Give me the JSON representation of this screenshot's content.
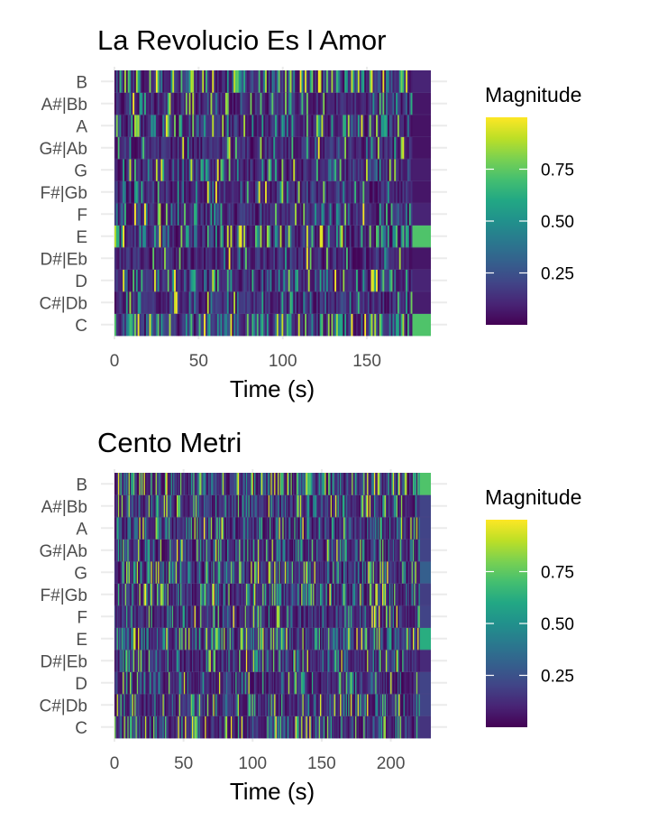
{
  "chart_data": [
    {
      "type": "heatmap",
      "title": "La Revolucio Es l Amor",
      "xlabel": "Time (s)",
      "ylabel": "",
      "xlim": [
        0,
        188
      ],
      "xticks": [
        0,
        50,
        100,
        150
      ],
      "categories": [
        "C",
        "C#|Db",
        "D",
        "D#|Eb",
        "E",
        "F",
        "F#|Gb",
        "G",
        "G#|Ab",
        "A",
        "A#|Bb",
        "B"
      ],
      "legend": {
        "title": "Magnitude",
        "ticks": [
          0.25,
          0.5,
          0.75
        ],
        "position": "right",
        "colormap": "viridis",
        "range": [
          0,
          1
        ]
      },
      "segments": 180,
      "seed": 7,
      "pitch_activity": {
        "C": 0.45,
        "C#|Db": 0.12,
        "D": 0.3,
        "D#|Eb": 0.1,
        "E": 0.38,
        "F": 0.2,
        "F#|Gb": 0.14,
        "G": 0.3,
        "G#|Ab": 0.1,
        "A": 0.32,
        "A#|Bb": 0.16,
        "B": 0.42
      },
      "final_segment_values": {
        "C": 0.72,
        "C#|Db": 0.08,
        "D": 0.1,
        "D#|Eb": 0.06,
        "E": 0.72,
        "F": 0.1,
        "F#|Gb": 0.06,
        "G": 0.08,
        "G#|Ab": 0.05,
        "A": 0.05,
        "A#|Bb": 0.06,
        "B": 0.1
      },
      "final_segment_time": 177
    },
    {
      "type": "heatmap",
      "title": "Cento Metri",
      "xlabel": "Time (s)",
      "ylabel": "",
      "xlim": [
        0,
        229
      ],
      "xticks": [
        0,
        50,
        100,
        150,
        200
      ],
      "categories": [
        "C",
        "C#|Db",
        "D",
        "D#|Eb",
        "E",
        "F",
        "F#|Gb",
        "G",
        "G#|Ab",
        "A",
        "A#|Bb",
        "B"
      ],
      "legend": {
        "title": "Magnitude",
        "ticks": [
          0.25,
          0.5,
          0.75
        ],
        "position": "right",
        "colormap": "viridis",
        "range": [
          0,
          1
        ]
      },
      "segments": 260,
      "seed": 19,
      "pitch_activity": {
        "C": 0.3,
        "C#|Db": 0.25,
        "D": 0.2,
        "D#|Eb": 0.28,
        "E": 0.4,
        "F": 0.25,
        "F#|Gb": 0.33,
        "G": 0.33,
        "G#|Ab": 0.3,
        "A": 0.3,
        "A#|Bb": 0.3,
        "B": 0.42
      },
      "final_segment_values": {
        "C": 0.15,
        "C#|Db": 0.2,
        "D": 0.2,
        "D#|Eb": 0.12,
        "E": 0.62,
        "F": 0.2,
        "F#|Gb": 0.18,
        "G": 0.3,
        "G#|Ab": 0.2,
        "A": 0.2,
        "A#|Bb": 0.2,
        "B": 0.72
      },
      "final_segment_time": 221
    }
  ]
}
